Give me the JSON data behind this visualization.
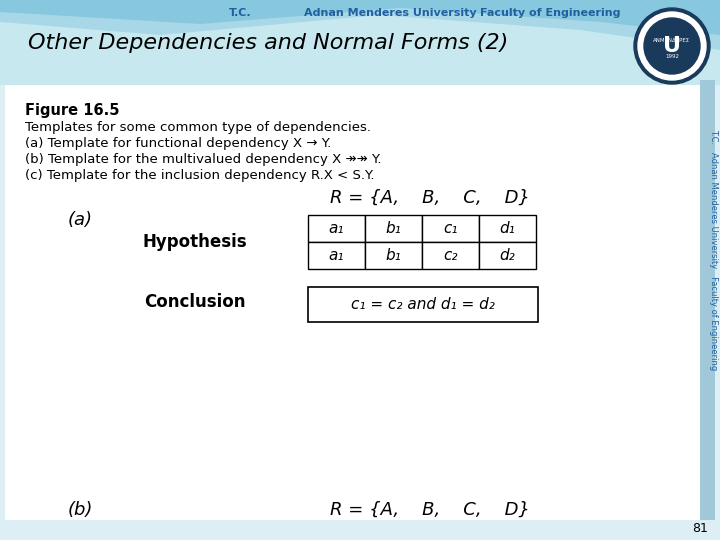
{
  "title": "Other Dependencies and Normal Forms (2)",
  "header_text_1": "T.C.",
  "header_text_2": "Adnan Menderes University",
  "header_text_3": "Faculty of Engineering",
  "figure_label": "Figure 16.5",
  "description_lines": [
    "Templates for some common type of dependencies.",
    "(a) Template for functional dependency X → Y.",
    "(b) Template for the multivalued dependency X ↠↠ Y.",
    "(c) Template for the inclusion dependency R.X < S.Y."
  ],
  "section_a_label": "(a)",
  "r_label": "R = {A,    B,    C,    D}",
  "hypothesis_label": "Hypothesis",
  "conclusion_label": "Conclusion",
  "table_row1": [
    "a₁",
    "b₁",
    "c₁",
    "d₁"
  ],
  "table_row2": [
    "a₁",
    "b₁",
    "c₂",
    "d₂"
  ],
  "conclusion_text": "c₁ = c₂ and d₁ = d₂",
  "section_b_label": "(b)",
  "r_label_b": "R = {A,    B,    C,    D}",
  "page_number": "81",
  "wave_color_1": "#c8e8f0",
  "wave_color_2": "#a8d8e8",
  "wave_color_3": "#88c8de",
  "bg_color": "#ddeef5",
  "white_area_color": "#ffffff",
  "title_color": "#000000",
  "header_tc_color": "#2060a0",
  "side_bar_color": "#a0c8d8"
}
